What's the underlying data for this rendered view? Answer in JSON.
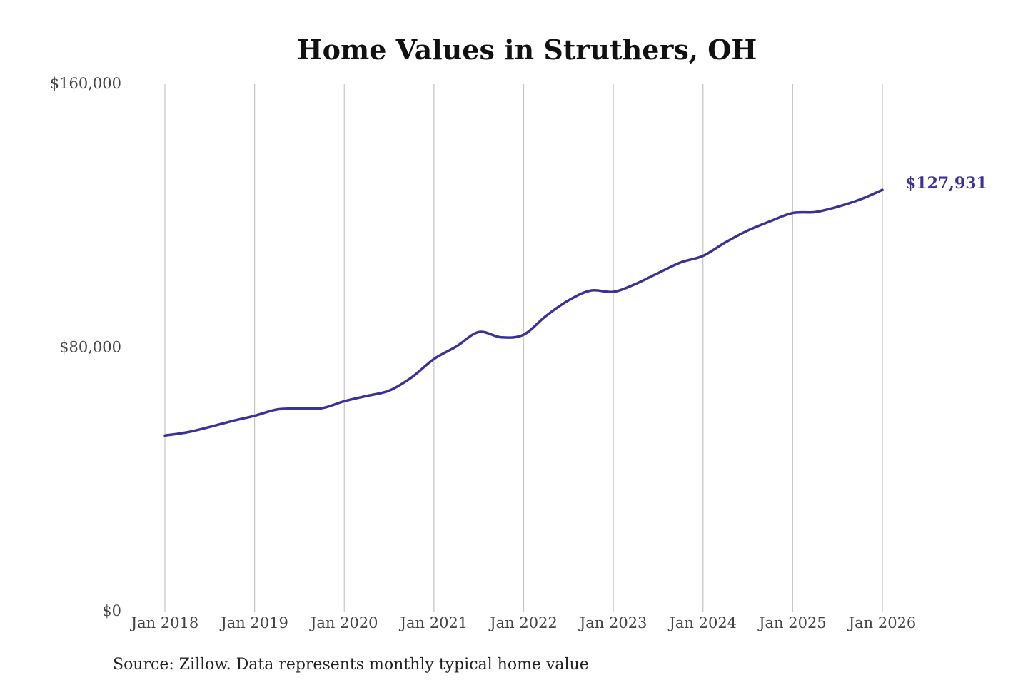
{
  "chart_data": {
    "type": "line",
    "title": "Home Values in Struthers, OH",
    "xlabel": "",
    "ylabel": "",
    "ylim": [
      0,
      160000
    ],
    "yticks": [
      {
        "value": 0,
        "label": "$0"
      },
      {
        "value": 80000,
        "label": "$80,000"
      },
      {
        "value": 160000,
        "label": "$160,000"
      }
    ],
    "xlim": [
      "2018-01",
      "2026-01"
    ],
    "xticks": [
      {
        "date": "2018-01",
        "label": "Jan 2018"
      },
      {
        "date": "2019-01",
        "label": "Jan 2019"
      },
      {
        "date": "2020-01",
        "label": "Jan 2020"
      },
      {
        "date": "2021-01",
        "label": "Jan 2021"
      },
      {
        "date": "2022-01",
        "label": "Jan 2022"
      },
      {
        "date": "2023-01",
        "label": "Jan 2023"
      },
      {
        "date": "2024-01",
        "label": "Jan 2024"
      },
      {
        "date": "2025-01",
        "label": "Jan 2025"
      },
      {
        "date": "2026-01",
        "label": "Jan 2026"
      }
    ],
    "grid": {
      "vertical": true,
      "horizontal": false
    },
    "series": [
      {
        "color": "#3a3395",
        "points": [
          {
            "x": "2018-01",
            "y": 53400
          },
          {
            "x": "2018-04",
            "y": 54400
          },
          {
            "x": "2018-07",
            "y": 56000
          },
          {
            "x": "2018-10",
            "y": 57800
          },
          {
            "x": "2019-01",
            "y": 59400
          },
          {
            "x": "2019-04",
            "y": 61300
          },
          {
            "x": "2019-07",
            "y": 61600
          },
          {
            "x": "2019-10",
            "y": 61700
          },
          {
            "x": "2020-01",
            "y": 63800
          },
          {
            "x": "2020-04",
            "y": 65400
          },
          {
            "x": "2020-07",
            "y": 67000
          },
          {
            "x": "2020-10",
            "y": 71000
          },
          {
            "x": "2021-01",
            "y": 76600
          },
          {
            "x": "2021-04",
            "y": 80400
          },
          {
            "x": "2021-07",
            "y": 84800
          },
          {
            "x": "2021-10",
            "y": 83200
          },
          {
            "x": "2022-01",
            "y": 84000
          },
          {
            "x": "2022-04",
            "y": 89700
          },
          {
            "x": "2022-07",
            "y": 94400
          },
          {
            "x": "2022-10",
            "y": 97400
          },
          {
            "x": "2023-01",
            "y": 97000
          },
          {
            "x": "2023-04",
            "y": 99400
          },
          {
            "x": "2023-07",
            "y": 102700
          },
          {
            "x": "2023-10",
            "y": 105900
          },
          {
            "x": "2024-01",
            "y": 107900
          },
          {
            "x": "2024-04",
            "y": 112000
          },
          {
            "x": "2024-07",
            "y": 115600
          },
          {
            "x": "2024-10",
            "y": 118400
          },
          {
            "x": "2025-01",
            "y": 120900
          },
          {
            "x": "2025-04",
            "y": 121200
          },
          {
            "x": "2025-07",
            "y": 122800
          },
          {
            "x": "2025-10",
            "y": 125000
          },
          {
            "x": "2026-01",
            "y": 127931
          }
        ]
      }
    ],
    "end_label": "$127,931",
    "source": "Source: Zillow. Data represents monthly typical home value"
  }
}
